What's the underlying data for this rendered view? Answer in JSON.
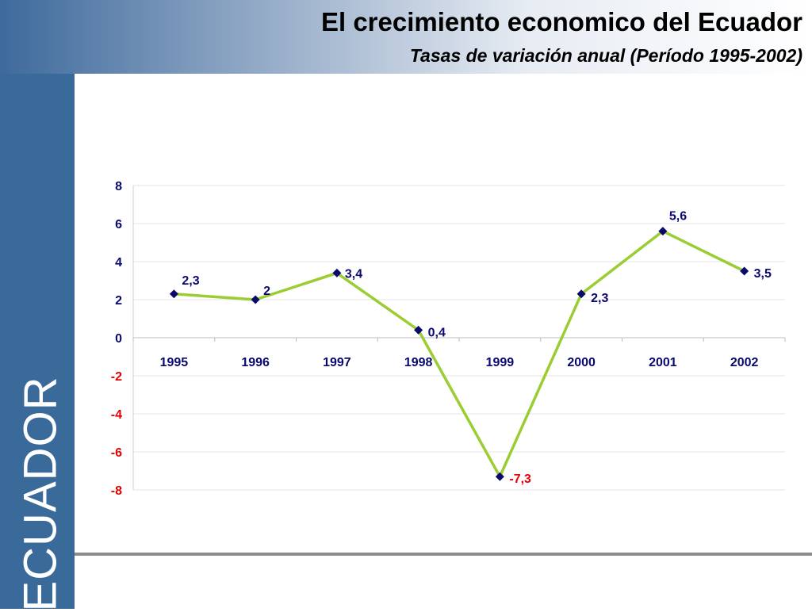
{
  "header": {
    "title": "El crecimiento economico del Ecuador",
    "subtitle": "Tasas de variación anual (Período 1995-2002)"
  },
  "sidebar": {
    "label": "ECUADOR"
  },
  "colors": {
    "line": "#9acd32",
    "marker": "#0a0a6e",
    "positive_text": "#0a0a6e",
    "negative_text": "#e60000",
    "sidebar": "#3a6a9a",
    "gridline": "#e6e6e6"
  },
  "chart_data": {
    "type": "line",
    "categories": [
      "1995",
      "1996",
      "1997",
      "1998",
      "1999",
      "2000",
      "2001",
      "2002"
    ],
    "values": [
      2.3,
      2,
      3.4,
      0.4,
      -7.3,
      2.3,
      5.6,
      3.5
    ],
    "data_labels": [
      "2,3",
      "2",
      "3,4",
      "0,4",
      "-7,3",
      "2,3",
      "5,6",
      "3,5"
    ],
    "y_ticks": [
      8,
      6,
      4,
      2,
      0,
      -2,
      -4,
      -6,
      -8
    ],
    "ylim": [
      -8,
      8
    ],
    "grid": true,
    "legend": "none",
    "marker": "diamond"
  }
}
